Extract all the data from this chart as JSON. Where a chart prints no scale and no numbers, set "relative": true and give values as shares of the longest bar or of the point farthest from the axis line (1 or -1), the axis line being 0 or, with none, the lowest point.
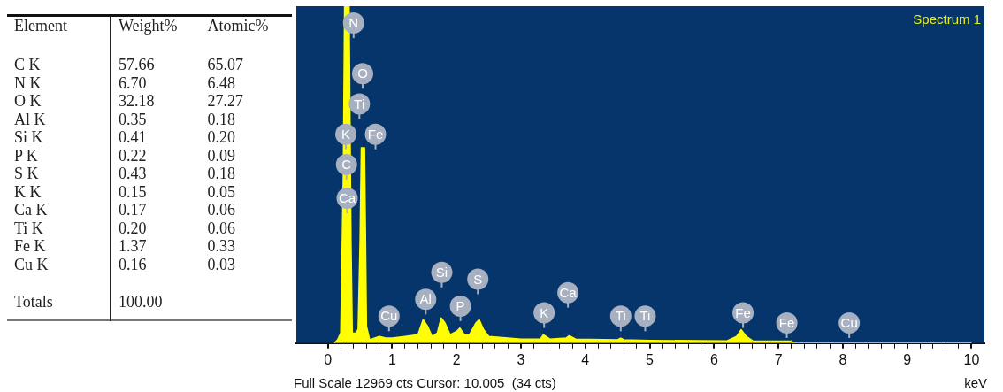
{
  "chart_data": [
    {
      "type": "other",
      "xlabel": "Element",
      "categories": [
        "C K",
        "N K",
        "O K",
        "Al K",
        "Si K",
        "P K",
        "S K",
        "K K",
        "Ca K",
        "Ti K",
        "Fe K",
        "Cu K"
      ],
      "series": [
        {
          "name": "Weight%",
          "values": [
            57.66,
            6.7,
            32.18,
            0.35,
            0.41,
            0.22,
            0.43,
            0.15,
            0.17,
            0.2,
            1.37,
            0.16
          ],
          "value_labels": [
            "57.66",
            "6.70",
            "32.18",
            "0.35",
            "0.41",
            "0.22",
            "0.43",
            "0.15",
            "0.17",
            "0.20",
            "1.37",
            "0.16"
          ]
        },
        {
          "name": "Atomic%",
          "values": [
            65.07,
            6.48,
            27.27,
            0.18,
            0.2,
            0.09,
            0.18,
            0.05,
            0.06,
            0.06,
            0.33,
            0.03
          ],
          "value_labels": [
            "65.07",
            "6.48",
            "27.27",
            "0.18",
            "0.20",
            "0.09",
            "0.18",
            "0.05",
            "0.06",
            "0.06",
            "0.33",
            "0.03"
          ]
        }
      ],
      "annotations": [
        "Totals",
        "100.00"
      ]
    },
    {
      "type": "area",
      "title": "Spectrum 1",
      "xlabel": "keV",
      "relative": true,
      "x": [
        0.1,
        0.15,
        0.2,
        0.24,
        0.26,
        0.33,
        0.36,
        0.38,
        0.43,
        0.47,
        0.5,
        0.52,
        0.57,
        0.6,
        0.65,
        0.8,
        0.9,
        1.0,
        1.2,
        1.4,
        1.48,
        1.55,
        1.62,
        1.7,
        1.76,
        1.82,
        1.9,
        2.0,
        2.05,
        2.12,
        2.2,
        2.3,
        2.35,
        2.42,
        2.5,
        2.8,
        3.0,
        3.3,
        3.35,
        3.45,
        3.7,
        3.75,
        3.85,
        4.5,
        4.55,
        4.6,
        5.0,
        6.2,
        6.35,
        6.42,
        6.5,
        6.6,
        7.2,
        7.25,
        10.0
      ],
      "series": [
        {
          "color": "#ffff00",
          "values": [
            0,
            0.01,
            0.03,
            0.5,
            1,
            1,
            0.3,
            0.03,
            0.03,
            0.04,
            0.3,
            0.58,
            0.58,
            0.05,
            0.01,
            0.02,
            0.015,
            0.015,
            0.02,
            0.025,
            0.07,
            0.05,
            0.02,
            0.03,
            0.075,
            0.06,
            0.025,
            0.035,
            0.045,
            0.025,
            0.025,
            0.06,
            0.07,
            0.04,
            0.02,
            0.015,
            0.012,
            0.012,
            0.025,
            0.012,
            0.015,
            0.022,
            0.012,
            0.01,
            0.015,
            0.01,
            0.008,
            0.007,
            0.02,
            0.04,
            0.02,
            0.007,
            0.006,
            0,
            0
          ]
        }
      ],
      "xlim": [
        -0.49,
        10.2
      ],
      "xticks": [
        0,
        {
          "value": 0.2,
          "label": null
        },
        {
          "value": 0.4,
          "label": null
        },
        {
          "value": 0.6,
          "label": null
        },
        {
          "value": 0.8,
          "label": null
        },
        1,
        {
          "value": 1.2,
          "label": null
        },
        {
          "value": 1.4,
          "label": null
        },
        {
          "value": 1.6,
          "label": null
        },
        {
          "value": 1.8,
          "label": null
        },
        2,
        {
          "value": 2.2,
          "label": null
        },
        {
          "value": 2.4,
          "label": null
        },
        {
          "value": 2.6,
          "label": null
        },
        {
          "value": 2.8,
          "label": null
        },
        3,
        {
          "value": 3.2,
          "label": null
        },
        {
          "value": 3.4,
          "label": null
        },
        {
          "value": 3.6,
          "label": null
        },
        {
          "value": 3.8,
          "label": null
        },
        4,
        {
          "value": 4.2,
          "label": null
        },
        {
          "value": 4.4,
          "label": null
        },
        {
          "value": 4.6,
          "label": null
        },
        {
          "value": 4.8,
          "label": null
        },
        5,
        {
          "value": 5.2,
          "label": null
        },
        {
          "value": 5.4,
          "label": null
        },
        {
          "value": 5.6,
          "label": null
        },
        {
          "value": 5.8,
          "label": null
        },
        6,
        {
          "value": 6.2,
          "label": null
        },
        {
          "value": 6.4,
          "label": null
        },
        {
          "value": 6.6,
          "label": null
        },
        {
          "value": 6.8,
          "label": null
        },
        7,
        {
          "value": 7.2,
          "label": null
        },
        {
          "value": 7.4,
          "label": null
        },
        {
          "value": 7.6,
          "label": null
        },
        {
          "value": 7.8,
          "label": null
        },
        8,
        {
          "value": 8.2,
          "label": null
        },
        {
          "value": 8.4,
          "label": null
        },
        {
          "value": 8.6,
          "label": null
        },
        {
          "value": 8.8,
          "label": null
        },
        9,
        {
          "value": 9.2,
          "label": null
        },
        {
          "value": 9.4,
          "label": null
        },
        {
          "value": 9.6,
          "label": null
        },
        {
          "value": 9.8,
          "label": null
        },
        10
      ],
      "annotations": [
        "Full Scale 12969 cts Cursor: 10.005  (34 cts)",
        {
          "text": "N",
          "x": 0.4,
          "y": 0.95
        },
        {
          "text": "O",
          "x": 0.54,
          "y": 0.8
        },
        {
          "text": "Ti",
          "x": 0.49,
          "y": 0.71
        },
        {
          "text": "K",
          "x": 0.28,
          "y": 0.62
        },
        {
          "text": "Fe",
          "x": 0.74,
          "y": 0.62
        },
        {
          "text": "C",
          "x": 0.29,
          "y": 0.53
        },
        {
          "text": "Ca",
          "x": 0.3,
          "y": 0.43
        },
        {
          "text": "Cu",
          "x": 0.95,
          "y": 0.08
        },
        {
          "text": "Al",
          "x": 1.52,
          "y": 0.13
        },
        {
          "text": "Si",
          "x": 1.77,
          "y": 0.21
        },
        {
          "text": "P",
          "x": 2.06,
          "y": 0.11
        },
        {
          "text": "S",
          "x": 2.33,
          "y": 0.19
        },
        {
          "text": "K",
          "x": 3.36,
          "y": 0.09
        },
        {
          "text": "Ca",
          "x": 3.73,
          "y": 0.15
        },
        {
          "text": "Ti",
          "x": 4.55,
          "y": 0.08
        },
        {
          "text": "Ti",
          "x": 4.93,
          "y": 0.08
        },
        {
          "text": "Fe",
          "x": 6.45,
          "y": 0.09
        },
        {
          "text": "Fe",
          "x": 7.13,
          "y": 0.06
        },
        {
          "text": "Cu",
          "x": 8.1,
          "y": 0.06
        }
      ]
    }
  ]
}
